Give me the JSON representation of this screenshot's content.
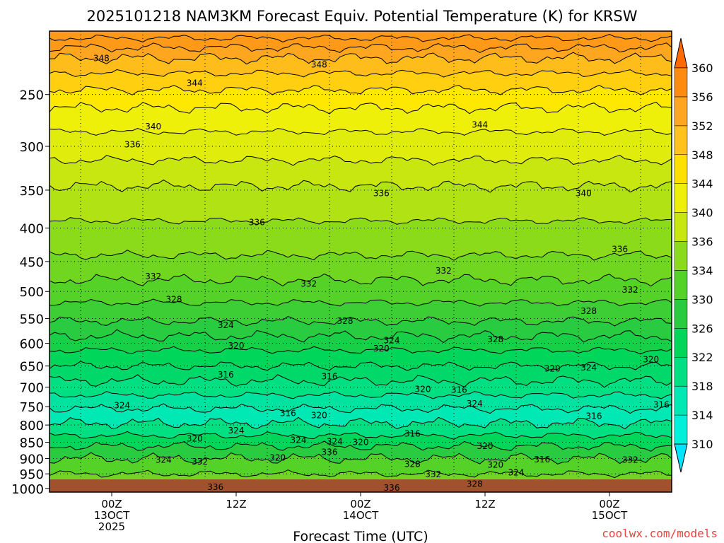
{
  "title": "2025101218 NAM3KM Forecast Equiv. Potential Temperature (K) for KRSW",
  "credit": "coolwx.com/models",
  "chart_data": {
    "type": "heatmap",
    "title": "2025101218 NAM3KM Forecast Equiv. Potential Temperature (K) for KRSW",
    "xlabel": "Forecast Time (UTC)",
    "ylabel": "",
    "x_ticks": [
      {
        "hour": 6,
        "lines": [
          "00Z",
          "13OCT",
          "2025"
        ]
      },
      {
        "hour": 18,
        "lines": [
          "12Z"
        ]
      },
      {
        "hour": 30,
        "lines": [
          "00Z",
          "14OCT"
        ]
      },
      {
        "hour": 42,
        "lines": [
          "12Z"
        ]
      },
      {
        "hour": 54,
        "lines": [
          "00Z",
          "15OCT"
        ]
      }
    ],
    "xlim_hours": [
      0,
      60
    ],
    "y_axis": "pressure (hPa), log scale",
    "y_ticks": [
      250,
      300,
      350,
      400,
      450,
      500,
      550,
      600,
      650,
      700,
      750,
      800,
      850,
      900,
      950,
      1000
    ],
    "ylim": [
      200,
      1013
    ],
    "colorbar": {
      "labels": [
        310,
        314,
        318,
        322,
        326,
        330,
        334,
        336,
        340,
        344,
        348,
        352,
        356,
        360
      ],
      "colors": [
        "#00e5ff",
        "#00f0dc",
        "#00e8b4",
        "#00df82",
        "#00d65a",
        "#29cc41",
        "#54d227",
        "#8cdb1a",
        "#c8e610",
        "#eef009",
        "#ffe000",
        "#ffc31c",
        "#ffa620",
        "#ff8a10",
        "#ff6a00"
      ]
    },
    "contour_levels": [
      {
        "level": 310,
        "color": "#00e5ff"
      },
      {
        "level": 314,
        "color": "#00f0dc"
      },
      {
        "level": 316,
        "color": "#00e8b4"
      },
      {
        "level": 318,
        "color": "#00e3a0"
      },
      {
        "level": 320,
        "color": "#00df82"
      },
      {
        "level": 322,
        "color": "#00d86a"
      },
      {
        "level": 324,
        "color": "#00d65a"
      },
      {
        "level": 326,
        "color": "#18d048"
      },
      {
        "level": 328,
        "color": "#29cc41"
      },
      {
        "level": 330,
        "color": "#3dcd35"
      },
      {
        "level": 332,
        "color": "#54d227"
      },
      {
        "level": 334,
        "color": "#70d620"
      },
      {
        "level": 336,
        "color": "#8cdb1a"
      },
      {
        "level": 338,
        "color": "#b0e214"
      },
      {
        "level": 340,
        "color": "#c8e610"
      },
      {
        "level": 342,
        "color": "#e0ec0c"
      },
      {
        "level": 344,
        "color": "#eef009"
      },
      {
        "level": 346,
        "color": "#ffe800"
      },
      {
        "level": 348,
        "color": "#ffcf10"
      },
      {
        "level": 350,
        "color": "#ffbd1c"
      },
      {
        "level": 352,
        "color": "#ffa620"
      },
      {
        "level": 354,
        "color": "#ff9a18"
      }
    ],
    "contour_profile": [
      {
        "level": 354,
        "pressure": 205
      },
      {
        "level": 352,
        "pressure": 212
      },
      {
        "level": 350,
        "pressure": 220
      },
      {
        "level": 348,
        "pressure": 232
      },
      {
        "level": 346,
        "pressure": 246
      },
      {
        "level": 344,
        "pressure": 262
      },
      {
        "level": 342,
        "pressure": 285
      },
      {
        "level": 340,
        "pressure": 315
      },
      {
        "level": 338,
        "pressure": 345
      },
      {
        "level": 336,
        "pressure": 390
      },
      {
        "level": 334,
        "pressure": 440
      },
      {
        "level": 332,
        "pressure": 480
      },
      {
        "level": 330,
        "pressure": 520
      },
      {
        "level": 328,
        "pressure": 555
      },
      {
        "level": 326,
        "pressure": 585
      },
      {
        "level": 324,
        "pressure": 615
      },
      {
        "level": 322,
        "pressure": 650
      },
      {
        "level": 320,
        "pressure": 685
      },
      {
        "level": 318,
        "pressure": 720
      },
      {
        "level": 316,
        "pressure": 755
      },
      {
        "level": 320,
        "pressure": 795
      },
      {
        "level": 324,
        "pressure": 830
      },
      {
        "level": 328,
        "pressure": 862
      },
      {
        "level": 332,
        "pressure": 900
      },
      {
        "level": 334,
        "pressure": 950
      },
      {
        "level": 336,
        "pressure": 990
      }
    ],
    "contour_labels": [
      {
        "text": "348",
        "hour": 5,
        "p": 220
      },
      {
        "text": "348",
        "hour": 26,
        "p": 225
      },
      {
        "text": "344",
        "hour": 14,
        "p": 240
      },
      {
        "text": "344",
        "hour": 41.5,
        "p": 278
      },
      {
        "text": "340",
        "hour": 10,
        "p": 280
      },
      {
        "text": "336",
        "hour": 8,
        "p": 298
      },
      {
        "text": "336",
        "hour": 32,
        "p": 354
      },
      {
        "text": "340",
        "hour": 51.5,
        "p": 354
      },
      {
        "text": "336",
        "hour": 20,
        "p": 392
      },
      {
        "text": "336",
        "hour": 55,
        "p": 431
      },
      {
        "text": "332",
        "hour": 10,
        "p": 474
      },
      {
        "text": "332",
        "hour": 38,
        "p": 465
      },
      {
        "text": "332",
        "hour": 25,
        "p": 487
      },
      {
        "text": "332",
        "hour": 56,
        "p": 497
      },
      {
        "text": "328",
        "hour": 12,
        "p": 514
      },
      {
        "text": "328",
        "hour": 52,
        "p": 536
      },
      {
        "text": "328",
        "hour": 28.5,
        "p": 555
      },
      {
        "text": "324",
        "hour": 17,
        "p": 563
      },
      {
        "text": "328",
        "hour": 43,
        "p": 592
      },
      {
        "text": "324",
        "hour": 33,
        "p": 594
      },
      {
        "text": "320",
        "hour": 18,
        "p": 605
      },
      {
        "text": "320",
        "hour": 32,
        "p": 611
      },
      {
        "text": "320",
        "hour": 58,
        "p": 635
      },
      {
        "text": "320",
        "hour": 48.5,
        "p": 656
      },
      {
        "text": "324",
        "hour": 52,
        "p": 654
      },
      {
        "text": "316",
        "hour": 17,
        "p": 670
      },
      {
        "text": "316",
        "hour": 27,
        "p": 674
      },
      {
        "text": "320",
        "hour": 36,
        "p": 705
      },
      {
        "text": "316",
        "hour": 39.5,
        "p": 707
      },
      {
        "text": "324",
        "hour": 41,
        "p": 742
      },
      {
        "text": "316",
        "hour": 59,
        "p": 745
      },
      {
        "text": "324",
        "hour": 7,
        "p": 747
      },
      {
        "text": "316",
        "hour": 23,
        "p": 768
      },
      {
        "text": "320",
        "hour": 26,
        "p": 773
      },
      {
        "text": "316",
        "hour": 52.5,
        "p": 775
      },
      {
        "text": "324",
        "hour": 18,
        "p": 816
      },
      {
        "text": "316",
        "hour": 35,
        "p": 825
      },
      {
        "text": "320",
        "hour": 14,
        "p": 840
      },
      {
        "text": "324",
        "hour": 24,
        "p": 844
      },
      {
        "text": "324",
        "hour": 27.5,
        "p": 848
      },
      {
        "text": "320",
        "hour": 30,
        "p": 850
      },
      {
        "text": "320",
        "hour": 42,
        "p": 862
      },
      {
        "text": "336",
        "hour": 27,
        "p": 880
      },
      {
        "text": "324",
        "hour": 11,
        "p": 905
      },
      {
        "text": "332",
        "hour": 14.5,
        "p": 910
      },
      {
        "text": "320",
        "hour": 22,
        "p": 898
      },
      {
        "text": "316",
        "hour": 47.5,
        "p": 904
      },
      {
        "text": "332",
        "hour": 56,
        "p": 905
      },
      {
        "text": "328",
        "hour": 35,
        "p": 918
      },
      {
        "text": "320",
        "hour": 43,
        "p": 920
      },
      {
        "text": "324",
        "hour": 45,
        "p": 946
      },
      {
        "text": "332",
        "hour": 37,
        "p": 952
      },
      {
        "text": "328",
        "hour": 41,
        "p": 985
      },
      {
        "text": "336",
        "hour": 16,
        "p": 995
      },
      {
        "text": "336",
        "hour": 33,
        "p": 998
      }
    ]
  }
}
